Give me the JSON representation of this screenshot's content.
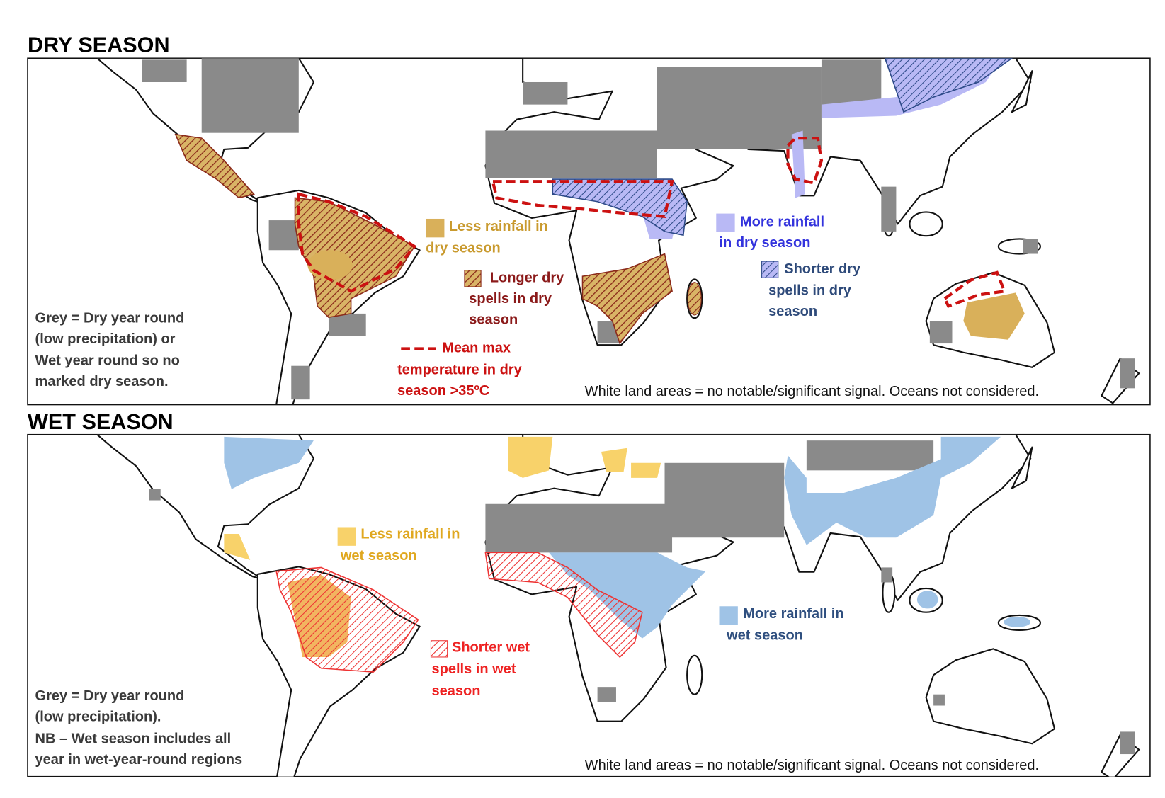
{
  "dry_season": {
    "title": "DRY SEASON",
    "legend": [
      {
        "label_lines": [
          "Less rainfall in",
          "dry season"
        ]
      },
      {
        "label_lines": [
          "Longer dry",
          "spells in dry",
          "season"
        ]
      },
      {
        "label_lines": [
          "More rainfall",
          "in dry season"
        ]
      },
      {
        "label_lines": [
          "Shorter dry",
          "spells in dry",
          "season"
        ]
      },
      {
        "label_lines": [
          "Mean max",
          "temperature in dry",
          "season >35ºC"
        ]
      }
    ],
    "grey_note_lines": [
      "Grey = Dry year round",
      "(low precipitation) or",
      "Wet year round so no",
      "marked dry season."
    ],
    "footnote": "White land areas = no notable/significant signal. Oceans not considered."
  },
  "wet_season": {
    "title": "WET SEASON",
    "legend": [
      {
        "label_lines": [
          "Less rainfall in",
          "wet season"
        ]
      },
      {
        "label_lines": [
          "Shorter wet",
          "spells in wet",
          "season"
        ]
      },
      {
        "label_lines": [
          "More rainfall in",
          "wet season"
        ]
      }
    ],
    "grey_note_lines": [
      "Grey = Dry year round",
      "(low precipitation).",
      "NB – Wet season includes all",
      "year in wet-year-round regions"
    ],
    "footnote": "White land areas = no notable/significant signal. Oceans not considered."
  }
}
